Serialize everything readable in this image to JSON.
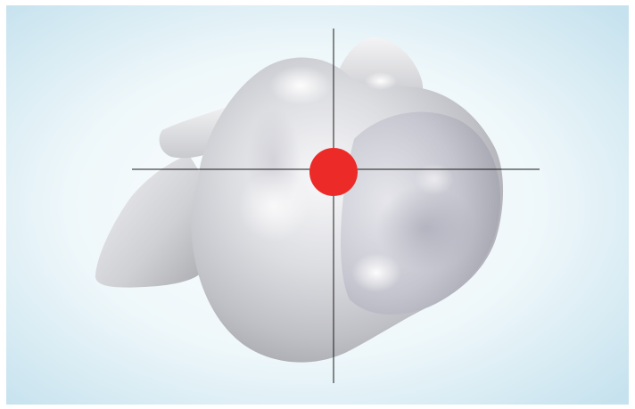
{
  "viewport": {
    "background_center": "#ffffff",
    "background_edge": "#c6e2ee"
  },
  "model": {
    "description_icon": "3d-mesh-blob-icon",
    "fill_light": "#f6f6f8",
    "fill_mid": "#d4d5d9",
    "fill_dark": "#a7a8ad",
    "shadow": "#b9b9c8"
  },
  "crosshair": {
    "color": "#1a1a1a"
  },
  "marker": {
    "color": "#ec2a27",
    "icon": "red-dot-marker-icon"
  }
}
